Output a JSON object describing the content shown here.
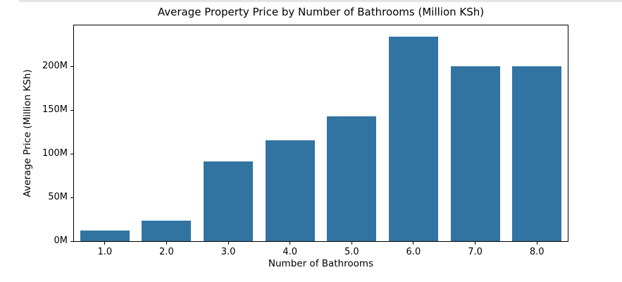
{
  "window": {
    "background": "#ffffff",
    "top_strip_color": "#e4e4e4"
  },
  "chart_data": {
    "type": "bar",
    "title": "Average Property Price by Number of Bathrooms (Million KSh)",
    "xlabel": "Number of Bathrooms",
    "ylabel": "Average Price (Million KSh)",
    "categories": [
      "1.0",
      "2.0",
      "3.0",
      "4.0",
      "5.0",
      "6.0",
      "7.0",
      "8.0"
    ],
    "values": [
      12,
      23,
      91,
      115,
      143,
      234,
      200,
      200
    ],
    "value_unit": "Million KSh",
    "bar_color": "#3274a1",
    "axis_color": "#000000",
    "text_color": "#000000",
    "plot_background": "#ffffff",
    "ylim": [
      0,
      246.75
    ],
    "yticks": [
      {
        "value": 0,
        "label": "0M"
      },
      {
        "value": 50,
        "label": "50M"
      },
      {
        "value": 100,
        "label": "100M"
      },
      {
        "value": 150,
        "label": "150M"
      },
      {
        "value": 200,
        "label": "200M"
      }
    ],
    "grid": false,
    "legend": "none"
  }
}
